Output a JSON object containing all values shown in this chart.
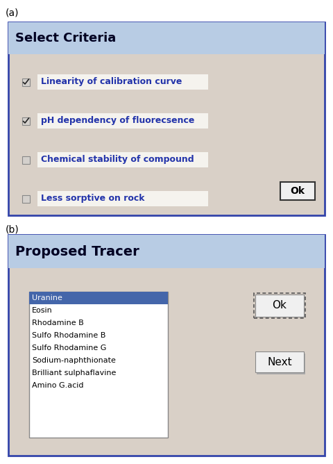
{
  "fig_bg": "#ffffff",
  "panel_a_label": "(a)",
  "panel_b_label": "(b)",
  "panel_a_title": "Select Criteria",
  "panel_b_title": "Proposed Tracer",
  "panel_bg_title": "#b8cce4",
  "panel_bg_content": "#d9d0c7",
  "panel_border": "#3344aa",
  "checkboxes": [
    {
      "label": "Linearity of calibration curve",
      "checked": true
    },
    {
      "label": "pH dependency of fluorecsence",
      "checked": true
    },
    {
      "label": "Chemical stability of compound",
      "checked": false
    },
    {
      "label": "Less sorptive on rock",
      "checked": false
    }
  ],
  "tracer_list": [
    "Uranine",
    "Eosin",
    "Rhodamine B",
    "Sulfo Rhodamine B",
    "Sulfo Rhodamine G",
    "Sodium-naphthionate",
    "Brilliant sulphaflavine",
    "Amino G.acid"
  ],
  "tracer_selected": "Uranine",
  "tracer_selected_bg": "#4466aa",
  "tracer_selected_fg": "#ffffff",
  "tracer_list_bg": "#ffffff",
  "label_color": "#2233aa",
  "title_color": "#000022",
  "button_bg": "#f0f0f0",
  "label_box_bg": "#f5f3ee"
}
